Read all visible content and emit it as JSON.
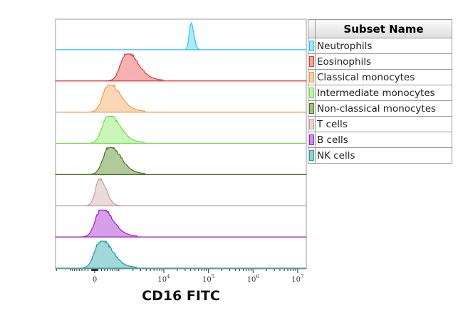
{
  "chart_data": {
    "type": "histogram-overlay-staggered",
    "xlabel": "CD16 FITC",
    "x_scale": "biexponential",
    "x_ticks": [
      {
        "label": "0",
        "value": 0
      },
      {
        "label": "10",
        "exp": "4",
        "value": 10000
      },
      {
        "label": "10",
        "exp": "5",
        "value": 100000
      },
      {
        "label": "10",
        "exp": "6",
        "value": 1000000
      },
      {
        "label": "10",
        "exp": "7",
        "value": 10000000
      }
    ],
    "legend_title": "Subset Name",
    "series": [
      {
        "name": "Neutrophils",
        "color": "#22c8f0",
        "fill": "#9fe6fa",
        "peak": 40500,
        "spread": "narrow"
      },
      {
        "name": "Eosinophils",
        "color": "#e23838",
        "fill": "#f4a4a4",
        "peak": 1370,
        "spread": "wide"
      },
      {
        "name": "Classical monocytes",
        "color": "#ee9a4c",
        "fill": "#fbd0a8",
        "peak": 430,
        "spread": "wide"
      },
      {
        "name": "Intermediate monocytes",
        "color": "#6ae048",
        "fill": "#bff5aa",
        "peak": 410,
        "spread": "wide"
      },
      {
        "name": "Non-classical monocytes",
        "color": "#4a7422",
        "fill": "#a4bf88",
        "peak": 440,
        "spread": "wide"
      },
      {
        "name": "T cells",
        "color": "#c49c9c",
        "fill": "#e8d4d4",
        "peak": 150,
        "spread": "medium"
      },
      {
        "name": "B cells",
        "color": "#9a1ec8",
        "fill": "#cf8de8",
        "peak": 180,
        "spread": "wide"
      },
      {
        "name": "NK cells",
        "color": "#1ea0a0",
        "fill": "#8fd2d0",
        "peak": 160,
        "spread": "wide"
      }
    ]
  }
}
